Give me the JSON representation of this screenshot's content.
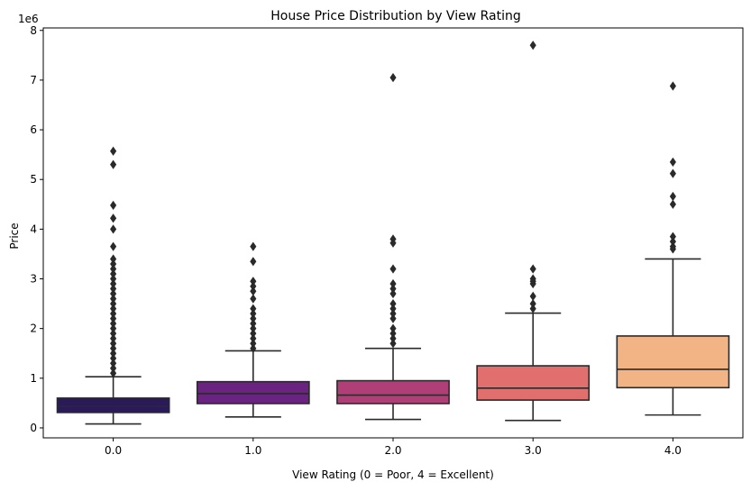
{
  "chart_data": {
    "type": "box",
    "title": "House Price Distribution by View Rating",
    "xlabel": "View Rating (0 = Poor, 4 = Excellent)",
    "ylabel": "Price",
    "y_multiplier_label": "1e6",
    "ylim": [
      -0.2,
      8.05
    ],
    "y_ticks": [
      0,
      1,
      2,
      3,
      4,
      5,
      6,
      7,
      8
    ],
    "y_tick_labels": [
      "0",
      "1",
      "2",
      "3",
      "4",
      "5",
      "6",
      "7",
      "8"
    ],
    "categories": [
      "0.0",
      "1.0",
      "2.0",
      "3.0",
      "4.0"
    ],
    "colors": [
      "#2b1a5a",
      "#6a2380",
      "#b13f77",
      "#e06f6e",
      "#f2b385"
    ],
    "boxes": [
      {
        "category": "0.0",
        "whisker_low": 0.08,
        "q1": 0.31,
        "median": 0.43,
        "q3": 0.6,
        "whisker_high": 1.03,
        "outliers": [
          5.57,
          5.3,
          4.48,
          4.22,
          4.0,
          3.65,
          3.4,
          3.3,
          3.2,
          3.1,
          3.0,
          2.9,
          2.8,
          2.7,
          2.6,
          2.5,
          2.4,
          2.3,
          2.2,
          2.1,
          2.0,
          1.9,
          1.8,
          1.7,
          1.6,
          1.5,
          1.4,
          1.3,
          1.2,
          1.1
        ]
      },
      {
        "category": "1.0",
        "whisker_low": 0.22,
        "q1": 0.49,
        "median": 0.69,
        "q3": 0.93,
        "whisker_high": 1.55,
        "outliers": [
          3.65,
          3.35,
          2.95,
          2.85,
          2.75,
          2.6,
          2.4,
          2.3,
          2.2,
          2.1,
          2.0,
          1.9,
          1.8,
          1.7,
          1.6
        ]
      },
      {
        "category": "2.0",
        "whisker_low": 0.17,
        "q1": 0.49,
        "median": 0.66,
        "q3": 0.95,
        "whisker_high": 1.6,
        "outliers": [
          7.05,
          3.8,
          3.72,
          3.2,
          2.9,
          2.8,
          2.7,
          2.5,
          2.4,
          2.3,
          2.2,
          2.0,
          1.9,
          1.8,
          1.7
        ]
      },
      {
        "category": "3.0",
        "whisker_low": 0.15,
        "q1": 0.56,
        "median": 0.8,
        "q3": 1.25,
        "whisker_high": 2.31,
        "outliers": [
          7.7,
          3.2,
          3.0,
          2.95,
          2.9,
          2.65,
          2.5,
          2.4
        ]
      },
      {
        "category": "4.0",
        "whisker_low": 0.26,
        "q1": 0.81,
        "median": 1.18,
        "q3": 1.85,
        "whisker_high": 3.4,
        "outliers": [
          6.88,
          5.35,
          5.12,
          4.66,
          4.5,
          3.85,
          3.75,
          3.65,
          3.6
        ]
      }
    ],
    "grid": false,
    "legend": "none"
  }
}
